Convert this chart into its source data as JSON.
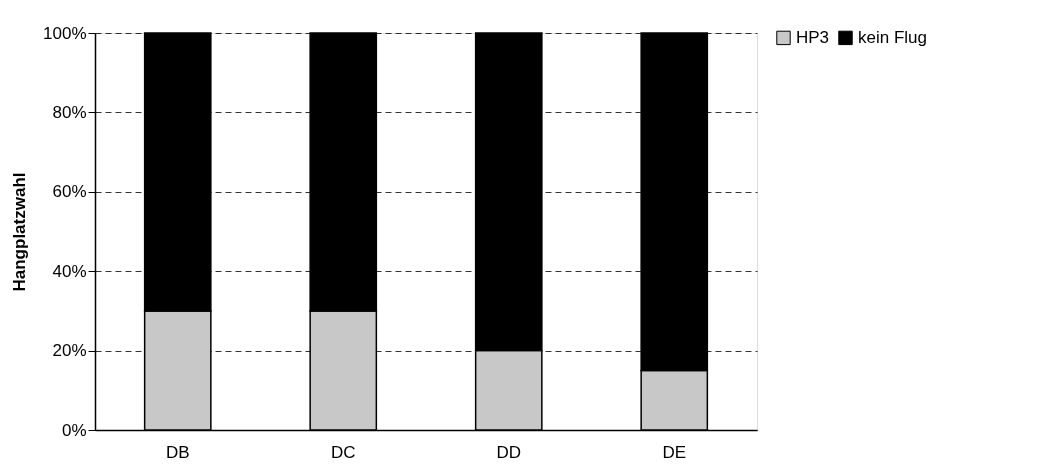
{
  "chart_data": {
    "type": "bar",
    "stacked": true,
    "ylabel": "Hangplatzwahl",
    "categories": [
      "DB",
      "DC",
      "DD",
      "DE"
    ],
    "series": [
      {
        "name": "HP3",
        "color": "#c8c8c8",
        "values": [
          30,
          30,
          20,
          15
        ]
      },
      {
        "name": "kein Flug",
        "color": "#000000",
        "values": [
          70,
          70,
          80,
          85
        ]
      }
    ],
    "ylim": [
      0,
      100
    ],
    "yticks": [
      {
        "value": 0,
        "label": "0%"
      },
      {
        "value": 20,
        "label": "20%"
      },
      {
        "value": 40,
        "label": "40%"
      },
      {
        "value": 60,
        "label": "60%"
      },
      {
        "value": 80,
        "label": "80%"
      },
      {
        "value": 100,
        "label": "100%"
      }
    ],
    "grid": "y",
    "legend": "top right"
  }
}
